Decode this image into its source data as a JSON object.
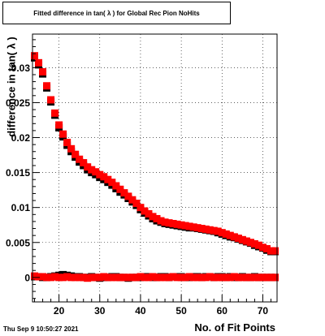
{
  "chart_data": {
    "type": "scatter",
    "title": "Fitted difference in tan( λ ) for Global Rec Pion NoHits",
    "xlabel": "No. of Fit Points",
    "ylabel": "difference in tan( λ )",
    "xlim": [
      13.5,
      73.5
    ],
    "ylim": [
      -0.0035,
      0.0348
    ],
    "xticks": [
      20,
      30,
      40,
      50,
      60,
      70
    ],
    "yticks": [
      0,
      0.005,
      0.01,
      0.015,
      0.02,
      0.025,
      0.03
    ],
    "ytick_labels": [
      "0",
      "0.005",
      "0.01",
      "0.015",
      "0.02",
      "0.025",
      "0.03"
    ],
    "grid": true,
    "series": [
      {
        "color": "#000000",
        "marker": "square",
        "x": [
          14,
          15,
          16,
          17,
          18,
          19,
          20,
          21,
          22,
          23,
          24,
          25,
          26,
          27,
          28,
          29,
          30,
          31,
          32,
          33,
          34,
          35,
          36,
          37,
          38,
          39,
          40,
          41,
          42,
          43,
          44,
          45,
          46,
          47,
          48,
          49,
          50,
          51,
          52,
          53,
          54,
          55,
          56,
          57,
          58,
          59,
          60,
          61,
          62,
          63,
          64,
          65,
          66,
          67,
          68,
          69,
          70,
          71,
          72,
          73
        ],
        "y": [
          0.0314,
          0.0304,
          0.0291,
          0.0271,
          0.0251,
          0.0232,
          0.0214,
          0.0201,
          0.0189,
          0.018,
          0.0172,
          0.0165,
          0.016,
          0.0154,
          0.015,
          0.0147,
          0.0143,
          0.014,
          0.0136,
          0.0132,
          0.0127,
          0.0122,
          0.0118,
          0.0113,
          0.0108,
          0.0103,
          0.0097,
          0.0092,
          0.0088,
          0.0084,
          0.0081,
          0.0079,
          0.0077,
          0.0076,
          0.0075,
          0.0074,
          0.0073,
          0.0072,
          0.0071,
          0.0071,
          0.007,
          0.0069,
          0.0068,
          0.0067,
          0.0066,
          0.0064,
          0.0062,
          0.006,
          0.0058,
          0.0057,
          0.0055,
          0.0053,
          0.0051,
          0.0049,
          0.0046,
          0.0044,
          0.0042,
          0.0039,
          0.0037,
          0.0037
        ]
      },
      {
        "color": "#ff0000",
        "marker": "square",
        "x": [
          14,
          15,
          16,
          17,
          18,
          19,
          20,
          21,
          22,
          23,
          24,
          25,
          26,
          27,
          28,
          29,
          30,
          31,
          32,
          33,
          34,
          35,
          36,
          37,
          38,
          39,
          40,
          41,
          42,
          43,
          44,
          45,
          46,
          47,
          48,
          49,
          50,
          51,
          52,
          53,
          54,
          55,
          56,
          57,
          58,
          59,
          60,
          61,
          62,
          63,
          64,
          65,
          66,
          67,
          68,
          69,
          70,
          71,
          72,
          73
        ],
        "y": [
          0.0317,
          0.0307,
          0.0294,
          0.0274,
          0.0254,
          0.0235,
          0.0218,
          0.0205,
          0.0193,
          0.0184,
          0.0176,
          0.0169,
          0.0164,
          0.0158,
          0.0154,
          0.0151,
          0.0147,
          0.0144,
          0.014,
          0.0136,
          0.0131,
          0.0126,
          0.0121,
          0.0116,
          0.0111,
          0.0106,
          0.01,
          0.0095,
          0.0091,
          0.0087,
          0.0084,
          0.0081,
          0.0079,
          0.0078,
          0.0077,
          0.0076,
          0.0075,
          0.0074,
          0.0073,
          0.0072,
          0.0071,
          0.007,
          0.0069,
          0.0068,
          0.0067,
          0.0066,
          0.0064,
          0.0062,
          0.006,
          0.0058,
          0.0056,
          0.0054,
          0.0052,
          0.005,
          0.0048,
          0.0046,
          0.0043,
          0.0041,
          0.0038,
          0.0038
        ]
      },
      {
        "color": "#000000",
        "marker": "square",
        "x": [
          14,
          15,
          16,
          17,
          18,
          19,
          20,
          21,
          22,
          23,
          24,
          25,
          26,
          27,
          28,
          29,
          30,
          31,
          32,
          33,
          34,
          35,
          36,
          37,
          38,
          39,
          40,
          41,
          42,
          43,
          44,
          45,
          46,
          47,
          48,
          49,
          50,
          51,
          52,
          53,
          54,
          55,
          56,
          57,
          58,
          59,
          60,
          61,
          62,
          63,
          64,
          65,
          66,
          67,
          68,
          69,
          70,
          71,
          72,
          73
        ],
        "y": [
          0.0001,
          0.0001,
          0.0,
          0.0,
          0.0001,
          0.0002,
          0.0003,
          0.0004,
          0.0003,
          0.0002,
          0.0001,
          0.0001,
          0.0,
          0.0,
          0.0001,
          0.0,
          -0.0001,
          0.0,
          0.0,
          0.0001,
          0.0001,
          0.0,
          0.0,
          -0.0001,
          0.0,
          0.0,
          0.0,
          0.0001,
          0.0001,
          0.0,
          0.0,
          0.0001,
          0.0001,
          0.0,
          0.0001,
          0.0001,
          0.0001,
          0.0,
          0.0,
          0.0001,
          0.0001,
          0.0,
          0.0001,
          0.0001,
          0.0,
          0.0001,
          0.0001,
          0.0,
          0.0001,
          0.0,
          0.0,
          0.0001,
          0.0,
          0.0,
          0.0001,
          0.0,
          0.0,
          0.0,
          0.0,
          0.0
        ]
      },
      {
        "color": "#ff0000",
        "marker": "square",
        "x": [
          14,
          15,
          16,
          17,
          18,
          19,
          20,
          21,
          22,
          23,
          24,
          25,
          26,
          27,
          28,
          29,
          30,
          31,
          32,
          33,
          34,
          35,
          36,
          37,
          38,
          39,
          40,
          41,
          42,
          43,
          44,
          45,
          46,
          47,
          48,
          49,
          50,
          51,
          52,
          53,
          54,
          55,
          56,
          57,
          58,
          59,
          60,
          61,
          62,
          63,
          64,
          65,
          66,
          67,
          68,
          69,
          70,
          71,
          72,
          73
        ],
        "y": [
          0.0002,
          0.0001,
          0.0001,
          0.0,
          0.0,
          0.0001,
          0.0,
          0.0,
          0.0001,
          0.0,
          0.0,
          0.0,
          0.0,
          -0.0001,
          0.0,
          0.0,
          0.0,
          0.0001,
          0.0,
          0.0,
          0.0,
          0.0,
          0.0,
          0.0,
          0.0,
          0.0,
          0.0001,
          0.0,
          0.0,
          0.0001,
          0.0,
          0.0,
          0.0,
          0.0,
          0.0001,
          0.0,
          0.0,
          0.0,
          0.0001,
          0.0,
          0.0,
          0.0,
          0.0,
          0.0001,
          0.0,
          0.0,
          0.0,
          0.0,
          0.0,
          0.0001,
          0.0,
          0.0,
          0.0,
          0.0,
          0.0,
          0.0,
          0.0,
          0.0,
          0.0,
          0.0
        ]
      }
    ]
  },
  "footer": {
    "timestamp": "Thu Sep  9 10:50:27 2021"
  }
}
